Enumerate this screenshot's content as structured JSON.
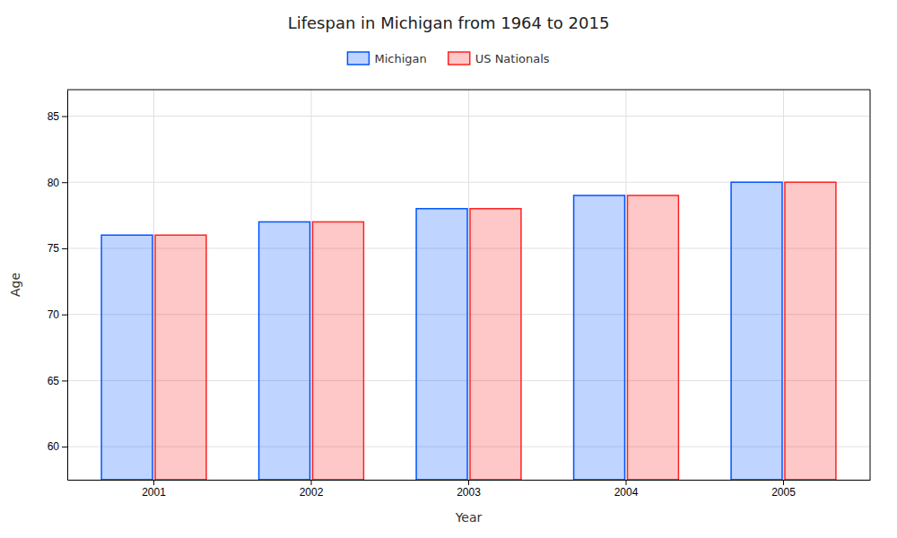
{
  "chart_data": {
    "type": "bar",
    "title": "Lifespan in Michigan from 1964 to 2015",
    "x_label": "Year",
    "y_label": "Age",
    "categories": [
      "2001",
      "2002",
      "2003",
      "2004",
      "2005"
    ],
    "series": [
      {
        "name": "Michigan",
        "color": "#0055ff",
        "values": [
          76.0,
          77.0,
          78.0,
          79.0,
          80.0
        ]
      },
      {
        "name": "US Nationals",
        "color": "#ff2222",
        "values": [
          76.0,
          77.0,
          78.0,
          79.0,
          80.0
        ]
      }
    ],
    "ylim": [
      57.5,
      87.0
    ],
    "yticks": [
      60,
      65,
      70,
      75,
      80,
      85
    ],
    "grid": true,
    "legend": "top"
  }
}
